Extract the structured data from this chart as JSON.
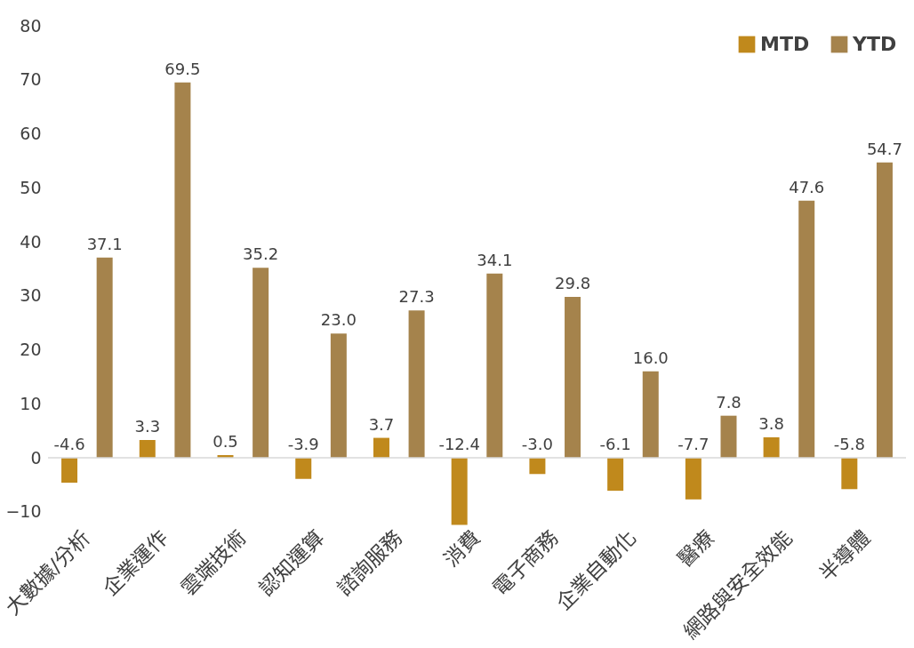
{
  "chart_data": {
    "type": "bar",
    "categories": [
      "大數據/分析",
      "企業運作",
      "雲端技術",
      "認知運算",
      "諮詢服務",
      "消費",
      "電子商務",
      "企業自動化",
      "醫療",
      "網路與安全效能",
      "半導體"
    ],
    "series": [
      {
        "name": "MTD",
        "color": "#c0891c",
        "values": [
          -4.6,
          3.3,
          0.5,
          -3.9,
          3.7,
          -12.4,
          -3.0,
          -6.1,
          -7.7,
          3.8,
          -5.8
        ],
        "value_labels": [
          "-4.6",
          "3.3",
          "0.5",
          "-3.9",
          "3.7",
          "-12.4",
          "-3.0",
          "-6.1",
          "-7.7",
          "3.8",
          "-5.8"
        ]
      },
      {
        "name": "YTD",
        "color": "#a5834c",
        "values": [
          37.1,
          69.5,
          35.2,
          23.0,
          27.3,
          34.1,
          29.8,
          16.0,
          7.8,
          47.6,
          54.7
        ],
        "value_labels": [
          "37.1",
          "69.5",
          "35.2",
          "23.0",
          "27.3",
          "34.1",
          "29.8",
          "16.0",
          "7.8",
          "47.6",
          "54.7"
        ]
      }
    ],
    "ylim": [
      -12.5,
      80
    ],
    "yticks": [
      -10,
      0,
      10,
      20,
      30,
      40,
      50,
      60,
      70,
      80
    ],
    "ref_lines": [
      {
        "axis": "y",
        "value": 0,
        "color": "#d9d9d9"
      }
    ],
    "grid": false,
    "legend": "top right"
  }
}
